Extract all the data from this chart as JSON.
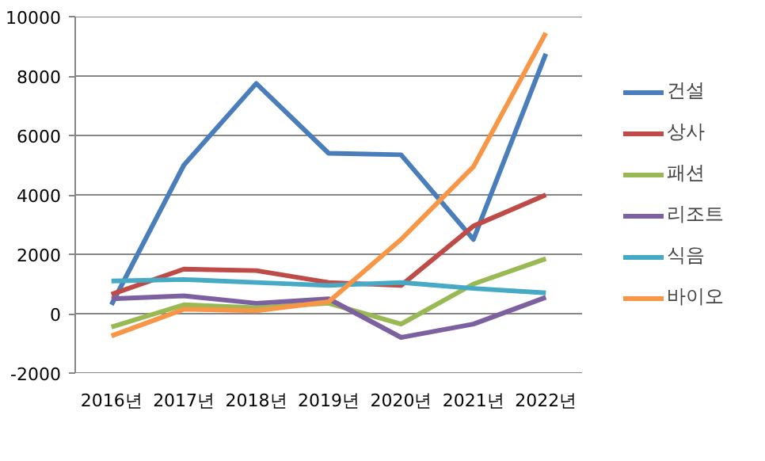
{
  "chart_data": {
    "type": "line",
    "categories": [
      "2016년",
      "2017년",
      "2018년",
      "2019년",
      "2020년",
      "2021년",
      "2022년"
    ],
    "series": [
      {
        "name": "건설",
        "color": "#4a7ebb",
        "values": [
          300,
          5000,
          7750,
          5400,
          5350,
          2500,
          8750
        ]
      },
      {
        "name": "상사",
        "color": "#be4b48",
        "values": [
          650,
          1500,
          1450,
          1050,
          950,
          2950,
          4000
        ]
      },
      {
        "name": "패션",
        "color": "#98b954",
        "values": [
          -450,
          300,
          200,
          350,
          -350,
          1000,
          1850
        ]
      },
      {
        "name": "리조트",
        "color": "#7d60a0",
        "values": [
          500,
          600,
          350,
          500,
          -800,
          -350,
          550
        ]
      },
      {
        "name": "식음",
        "color": "#46aac5",
        "values": [
          1100,
          1150,
          1050,
          950,
          1050,
          850,
          700
        ]
      },
      {
        "name": "바이오",
        "color": "#f79646",
        "values": [
          -750,
          150,
          100,
          400,
          2500,
          4950,
          9450
        ]
      }
    ],
    "ylim": [
      -2000,
      10000
    ],
    "yticks": [
      -2000,
      0,
      2000,
      4000,
      6000,
      8000,
      10000
    ],
    "grid": "y",
    "legend": "right",
    "marker": "none",
    "line_style": "solid"
  }
}
